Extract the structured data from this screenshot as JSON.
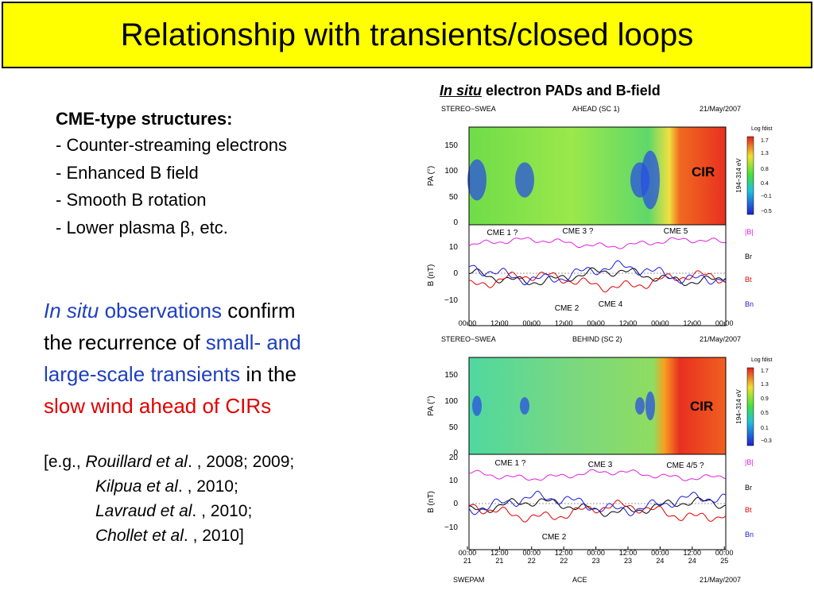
{
  "title": "Relationship with transients/closed loops",
  "left": {
    "heading": "CME-type structures:",
    "bullets": [
      "- Counter-streaming electrons",
      "- Enhanced B field",
      "- Smooth B rotation",
      "- Lower plasma β, etc."
    ],
    "paragraph": [
      [
        "In situ",
        " observations",
        " confirm"
      ],
      [
        "the recurrence of ",
        "small- and"
      ],
      [
        "large-scale transients",
        " in the"
      ],
      [
        "slow wind ahead of CIRs"
      ]
    ],
    "references": [
      [
        "[e.g., ",
        "Rouillard et al",
        ". , 2008; 2009;"
      ],
      [
        "Kilpua et al",
        ". , 2010;"
      ],
      [
        "Lavraud et al",
        ". , 2010;"
      ],
      [
        "Chollet et al",
        ". , 2010]"
      ]
    ]
  },
  "figure": {
    "caption": [
      "In situ",
      " electron PADs and B-field"
    ],
    "panels": [
      {
        "header": [
          "STEREO−SWEA",
          "AHEAD (SC 1)",
          "21/May/2007"
        ],
        "colorbar_title": "Log fdist",
        "colorbar_ticks": [
          "1.7",
          "1.3",
          "0.8",
          "0.4",
          "−0.1",
          "−0.5"
        ],
        "energy": "194−314 eV",
        "pa_label": "PA (°)",
        "pa_ticks": [
          "150",
          "100",
          "50",
          "0"
        ],
        "cir": "CIR",
        "b_label": "B (nT)",
        "b_ticks": [
          "10",
          "0",
          "−10"
        ],
        "events": [
          "CME 1 ?",
          "CME 3 ?",
          "CME 5",
          "CME 2",
          "CME 4"
        ],
        "components": [
          "|B|",
          "Br",
          "Bt",
          "Bn"
        ],
        "times": [
          "00:00",
          "12:00",
          "00:00",
          "12:00",
          "00:00",
          "12:00",
          "00:00",
          "12:00",
          "00:00"
        ]
      },
      {
        "header": [
          "STEREO−SWEA",
          "BEHIND (SC 2)",
          "21/May/2007"
        ],
        "colorbar_title": "Log fdist",
        "colorbar_ticks": [
          "1.7",
          "1.3",
          "0.9",
          "0.5",
          "0.1",
          "−0.3"
        ],
        "energy": "194−314 eV",
        "pa_label": "PA (°)",
        "pa_ticks": [
          "150",
          "100",
          "50",
          "0"
        ],
        "cir": "CIR",
        "b_label": "B (nT)",
        "b_ticks": [
          "20",
          "10",
          "0",
          "−10"
        ],
        "events": [
          "CME 1 ?",
          "CME 3",
          "CME 4/5 ?",
          "CME 2"
        ],
        "components": [
          "|B|",
          "Br",
          "Bt",
          "Bn"
        ],
        "times": [
          "00:00",
          "12:00",
          "00:00",
          "12:00",
          "00:00",
          "12:00",
          "00:00",
          "12:00",
          "00:00"
        ],
        "dates": [
          "21",
          "21",
          "22",
          "22",
          "23",
          "23",
          "24",
          "24",
          "25"
        ]
      }
    ],
    "footer": [
      "SWEPAM",
      "ACE",
      "21/May/2007"
    ]
  }
}
